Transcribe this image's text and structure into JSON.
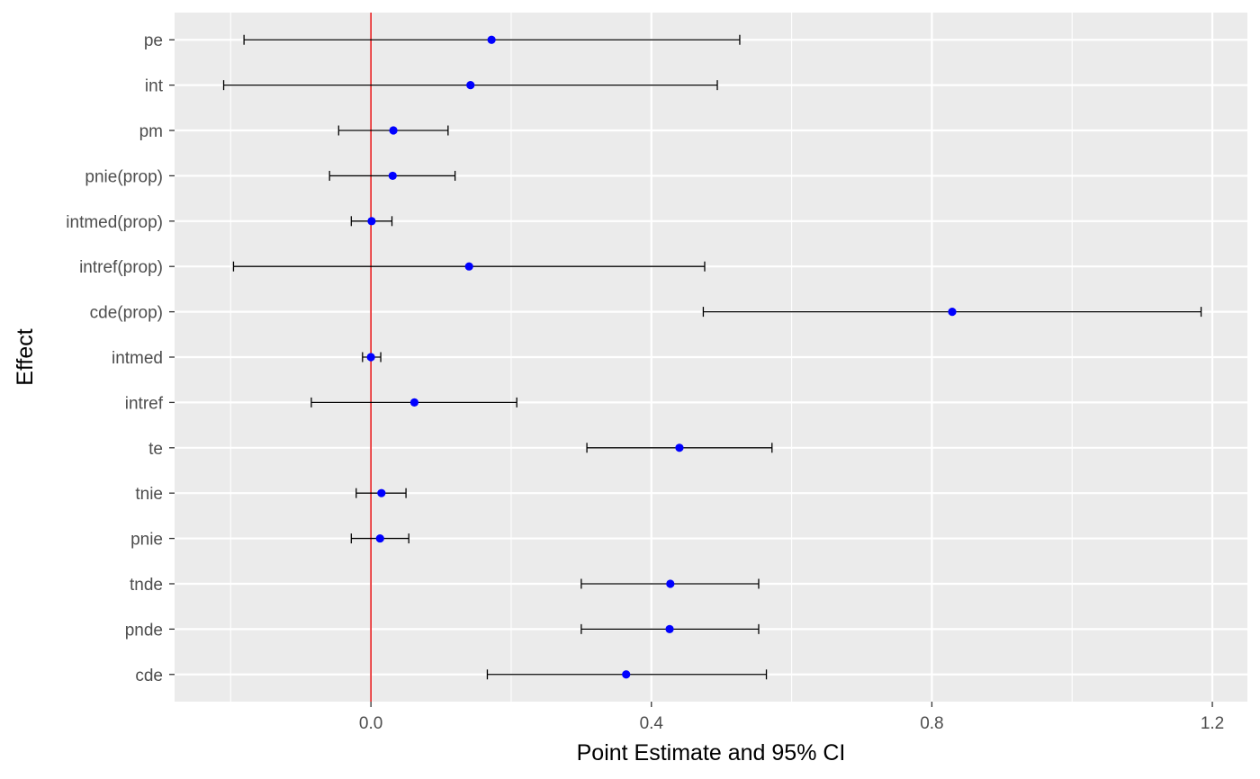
{
  "chart_data": {
    "type": "scatter",
    "title": "",
    "xlabel": "Point Estimate and 95% CI",
    "ylabel": "Effect",
    "xlim": [
      -0.28,
      1.25
    ],
    "x_ticks": [
      0.0,
      0.4,
      0.8,
      1.2
    ],
    "x_tick_labels": [
      "0.0",
      "0.4",
      "0.8",
      "1.2"
    ],
    "x_minor_ticks": [
      -0.2,
      0.2,
      0.6,
      1.0
    ],
    "grid": true,
    "reference_line": {
      "x": 0,
      "color": "#e41a1c"
    },
    "point_color": "#0000ff",
    "errorbar_color": "#000000",
    "panel_background": "#ebebeb",
    "categories": [
      "pe",
      "int",
      "pm",
      "pnie(prop)",
      "intmed(prop)",
      "intref(prop)",
      "cde(prop)",
      "intmed",
      "intref",
      "te",
      "tnie",
      "pnie",
      "tnde",
      "pnde",
      "cde"
    ],
    "estimates": [
      0.172,
      0.142,
      0.032,
      0.031,
      0.001,
      0.14,
      0.829,
      0.0,
      0.062,
      0.44,
      0.015,
      0.013,
      0.427,
      0.426,
      0.364
    ],
    "lower": [
      -0.181,
      -0.21,
      -0.046,
      -0.059,
      -0.028,
      -0.196,
      0.474,
      -0.012,
      -0.085,
      0.308,
      -0.021,
      -0.028,
      0.3,
      0.3,
      0.166
    ],
    "upper": [
      0.526,
      0.494,
      0.11,
      0.12,
      0.03,
      0.476,
      1.184,
      0.014,
      0.208,
      0.572,
      0.05,
      0.054,
      0.553,
      0.553,
      0.564
    ]
  }
}
